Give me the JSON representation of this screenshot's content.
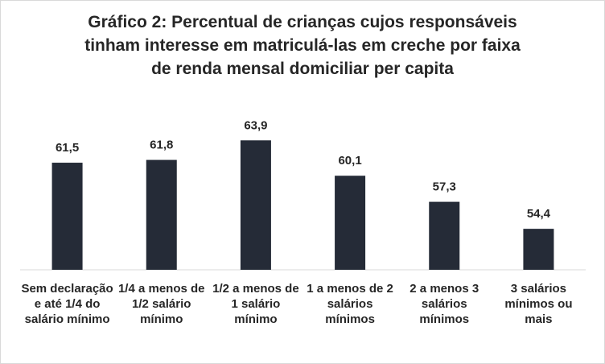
{
  "chart_data": {
    "type": "bar",
    "title": "Gráfico 2: Percentual de crianças cujos responsáveis\ntinham interesse em matriculá-las em creche por faixa\nde renda mensal domiciliar per capita",
    "categories": [
      "Sem declaração e até 1/4 do salário mínimo",
      "1/4 a menos de 1/2 salário mínimo",
      "1/2 a menos de 1 salário mínimo",
      "1 a menos de 2 salários mínimos",
      "2 a menos 3 salários mínimos",
      "3 salários mínimos ou mais"
    ],
    "values": [
      61.5,
      61.8,
      63.9,
      60.1,
      57.3,
      54.4
    ],
    "data_labels": [
      "61,5",
      "61,8",
      "63,9",
      "60,1",
      "57,3",
      "54,4"
    ],
    "ylim": [
      50,
      66
    ],
    "grid": false,
    "legend": "none",
    "bar_color": "#252b37"
  }
}
